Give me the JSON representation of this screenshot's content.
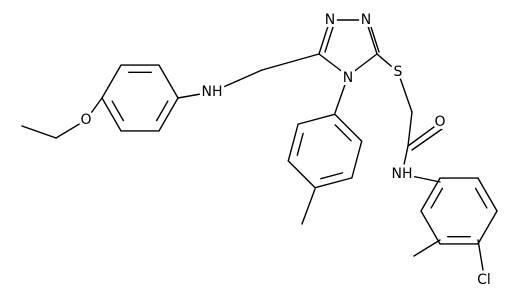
{
  "atoms": [
    "N",
    "N",
    "N",
    "S",
    "O",
    "NH",
    "O",
    "NH",
    "Cl"
  ]
}
